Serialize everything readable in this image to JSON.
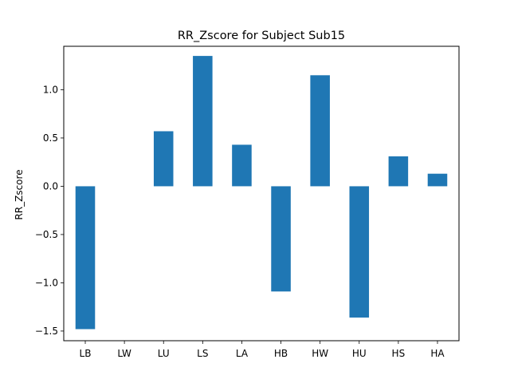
{
  "chart_data": {
    "type": "bar",
    "title": "RR_Zscore for Subject Sub15",
    "xlabel": "",
    "ylabel": "RR_Zscore",
    "categories": [
      "LB",
      "LW",
      "LU",
      "LS",
      "LA",
      "HB",
      "HW",
      "HU",
      "HS",
      "HA"
    ],
    "values": [
      -1.48,
      0.0,
      0.57,
      1.35,
      0.43,
      -1.09,
      1.15,
      -1.36,
      0.31,
      0.13
    ],
    "ylim": [
      -1.6,
      1.45
    ],
    "yticks": [
      -1.5,
      -1.0,
      -0.5,
      0.0,
      0.5,
      1.0
    ],
    "ytick_labels": [
      "−1.5",
      "−1.0",
      "−0.5",
      "0.0",
      "0.5",
      "1.0"
    ],
    "grid": false,
    "bar_color": "#1f77b4"
  }
}
